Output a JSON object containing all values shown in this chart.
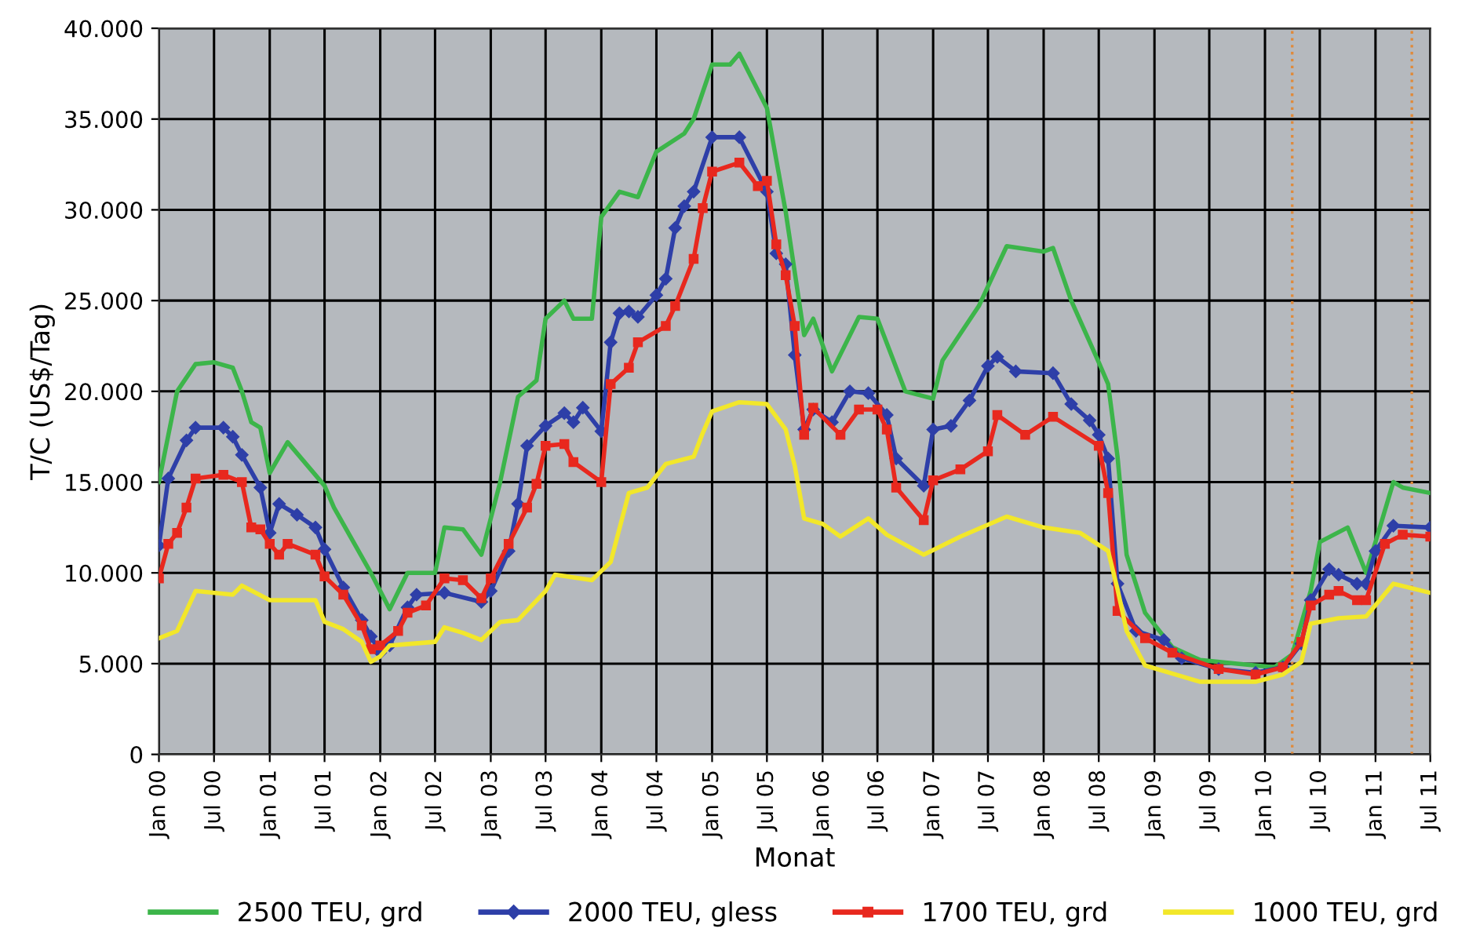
{
  "chart_data": {
    "type": "line",
    "xlabel": "Monat",
    "ylabel": "T/C (US$/Tag)",
    "xlim": [
      "2000-01",
      "2011-07"
    ],
    "xticks": [
      {
        "value": "2000-01",
        "label": "Jan 00"
      },
      {
        "value": "2000-07",
        "label": "Jul 00"
      },
      {
        "value": "2001-01",
        "label": "Jan 01"
      },
      {
        "value": "2001-07",
        "label": "Jul 01"
      },
      {
        "value": "2002-01",
        "label": "Jan 02"
      },
      {
        "value": "2002-07",
        "label": "Jul 02"
      },
      {
        "value": "2003-01",
        "label": "Jan 03"
      },
      {
        "value": "2003-07",
        "label": "Jul 03"
      },
      {
        "value": "2004-01",
        "label": "Jan 04"
      },
      {
        "value": "2004-07",
        "label": "Jul 04"
      },
      {
        "value": "2005-01",
        "label": "Jan 05"
      },
      {
        "value": "2005-07",
        "label": "Jul 05"
      },
      {
        "value": "2006-01",
        "label": "Jan 06"
      },
      {
        "value": "2006-07",
        "label": "Jul 06"
      },
      {
        "value": "2007-01",
        "label": "Jan 07"
      },
      {
        "value": "2007-07",
        "label": "Jul 07"
      },
      {
        "value": "2008-01",
        "label": "Jan 08"
      },
      {
        "value": "2008-07",
        "label": "Jul 08"
      },
      {
        "value": "2009-01",
        "label": "Jan 09"
      },
      {
        "value": "2009-07",
        "label": "Jul 09"
      },
      {
        "value": "2010-01",
        "label": "Jan 10"
      },
      {
        "value": "2010-07",
        "label": "Jul 10"
      },
      {
        "value": "2011-01",
        "label": "Jan 11"
      },
      {
        "value": "2011-07",
        "label": "Jul 11"
      }
    ],
    "ylim": [
      0,
      40000
    ],
    "yticks": [
      0,
      {
        "value": 5000,
        "label": "5.000"
      },
      {
        "value": 10000,
        "label": "10.000"
      },
      {
        "value": 15000,
        "label": "15.000"
      },
      {
        "value": 20000,
        "label": "20.000"
      },
      {
        "value": 25000,
        "label": "25.000"
      },
      {
        "value": 30000,
        "label": "30.000"
      },
      {
        "value": 35000,
        "label": "35.000"
      },
      {
        "value": 40000,
        "label": "40.000"
      }
    ],
    "grid": true,
    "legend": "bottom",
    "line_style": "solid",
    "ref_lines": [
      {
        "axis": "x",
        "value": "2010-04",
        "color": "#e08a3a",
        "line_style": "dotted"
      },
      {
        "axis": "x",
        "value": "2011-05",
        "color": "#e08a3a",
        "line_style": "dotted"
      }
    ],
    "series": [
      {
        "name": "2500 TEU, grd",
        "color": "#3cb54a",
        "marker": "none",
        "x": [
          "2000-01",
          "2000-03",
          "2000-05",
          "2000-07",
          "2000-09",
          "2000-10",
          "2000-11",
          "2000-12",
          "2001-01",
          "2001-03",
          "2001-07",
          "2001-08",
          "2001-12",
          "2002-02",
          "2002-04",
          "2002-07",
          "2002-08",
          "2002-10",
          "2002-12",
          "2003-02",
          "2003-04",
          "2003-06",
          "2003-07",
          "2003-09",
          "2003-10",
          "2003-12",
          "2004-01",
          "2004-03",
          "2004-05",
          "2004-07",
          "2004-10",
          "2004-11",
          "2005-01",
          "2005-03",
          "2005-04",
          "2005-07",
          "2005-09",
          "2005-11",
          "2005-12",
          "2006-02",
          "2006-05",
          "2006-07",
          "2006-10",
          "2007-01",
          "2007-02",
          "2007-06",
          "2007-09",
          "2008-01",
          "2008-02",
          "2008-04",
          "2008-07",
          "2008-08",
          "2008-09",
          "2008-10",
          "2008-12",
          "2009-03",
          "2009-06",
          "2009-10",
          "2010-02",
          "2010-04",
          "2010-06",
          "2010-07",
          "2010-10",
          "2010-12",
          "2011-01",
          "2011-03",
          "2011-04",
          "2011-07"
        ],
        "values": [
          15000,
          20000,
          21500,
          21600,
          21300,
          20000,
          18300,
          18000,
          15500,
          17200,
          14800,
          13600,
          10000,
          8000,
          10000,
          10000,
          12500,
          12400,
          11000,
          15000,
          19700,
          20600,
          24000,
          25000,
          24000,
          24000,
          29600,
          31000,
          30700,
          33200,
          34200,
          35000,
          38000,
          38000,
          38600,
          35600,
          29900,
          23100,
          24000,
          21100,
          24100,
          24000,
          20000,
          19600,
          21700,
          24700,
          28000,
          27700,
          27900,
          25000,
          21600,
          20400,
          16400,
          11000,
          7800,
          5900,
          5200,
          5000,
          4800,
          5500,
          9000,
          11700,
          12500,
          10000,
          11700,
          15000,
          14700,
          14400
        ]
      },
      {
        "name": "2000 TEU, gless",
        "color": "#2e3fa8",
        "marker": "diamond",
        "x": [
          "2000-01",
          "2000-02",
          "2000-04",
          "2000-05",
          "2000-08",
          "2000-09",
          "2000-10",
          "2000-12",
          "2001-01",
          "2001-02",
          "2001-04",
          "2001-06",
          "2001-07",
          "2001-09",
          "2001-11",
          "2001-12",
          "2002-01",
          "2002-02",
          "2002-04",
          "2002-05",
          "2002-08",
          "2002-12",
          "2003-01",
          "2003-03",
          "2003-04",
          "2003-05",
          "2003-07",
          "2003-09",
          "2003-10",
          "2003-11",
          "2004-01",
          "2004-02",
          "2004-03",
          "2004-04",
          "2004-05",
          "2004-07",
          "2004-08",
          "2004-09",
          "2004-10",
          "2004-11",
          "2005-01",
          "2005-04",
          "2005-07",
          "2005-08",
          "2005-09",
          "2005-10",
          "2005-11",
          "2005-12",
          "2006-02",
          "2006-04",
          "2006-06",
          "2006-08",
          "2006-09",
          "2006-12",
          "2007-01",
          "2007-03",
          "2007-05",
          "2007-07",
          "2007-08",
          "2007-10",
          "2008-02",
          "2008-04",
          "2008-06",
          "2008-07",
          "2008-08",
          "2008-09",
          "2008-11",
          "2009-02",
          "2009-04",
          "2009-08",
          "2009-12",
          "2010-03",
          "2010-05",
          "2010-06",
          "2010-08",
          "2010-09",
          "2010-11",
          "2010-12",
          "2011-01",
          "2011-03",
          "2011-07"
        ],
        "values": [
          11500,
          15200,
          17300,
          18000,
          18000,
          17500,
          16500,
          14700,
          12200,
          13800,
          13200,
          12500,
          11300,
          9200,
          7400,
          6500,
          5600,
          6000,
          8100,
          8800,
          8900,
          8400,
          9000,
          11200,
          13800,
          17000,
          18100,
          18800,
          18300,
          19100,
          17800,
          22700,
          24300,
          24400,
          24100,
          25300,
          26200,
          29000,
          30200,
          31000,
          34000,
          34000,
          31000,
          27600,
          27000,
          22000,
          17900,
          19000,
          18300,
          20000,
          19900,
          18700,
          16300,
          14800,
          17900,
          18100,
          19500,
          21400,
          21900,
          21100,
          21000,
          19300,
          18400,
          17600,
          16300,
          9400,
          6800,
          6300,
          5300,
          4700,
          4500,
          4800,
          6100,
          8500,
          10200,
          9900,
          9400,
          9400,
          11200,
          12600,
          12500
        ]
      },
      {
        "name": "1700 TEU, grd",
        "color": "#e8281e",
        "marker": "square",
        "x": [
          "2000-01",
          "2000-02",
          "2000-03",
          "2000-04",
          "2000-05",
          "2000-08",
          "2000-10",
          "2000-11",
          "2000-12",
          "2001-01",
          "2001-02",
          "2001-03",
          "2001-06",
          "2001-07",
          "2001-09",
          "2001-11",
          "2001-12",
          "2002-01",
          "2002-03",
          "2002-04",
          "2002-06",
          "2002-08",
          "2002-10",
          "2002-12",
          "2003-01",
          "2003-03",
          "2003-05",
          "2003-06",
          "2003-07",
          "2003-09",
          "2003-10",
          "2004-01",
          "2004-02",
          "2004-04",
          "2004-05",
          "2004-08",
          "2004-09",
          "2004-11",
          "2004-12",
          "2005-01",
          "2005-04",
          "2005-06",
          "2005-07",
          "2005-08",
          "2005-09",
          "2005-10",
          "2005-11",
          "2005-12",
          "2006-03",
          "2006-05",
          "2006-07",
          "2006-08",
          "2006-09",
          "2006-12",
          "2007-01",
          "2007-04",
          "2007-07",
          "2007-08",
          "2007-11",
          "2008-02",
          "2008-07",
          "2008-08",
          "2008-09",
          "2008-12",
          "2009-03",
          "2009-08",
          "2009-12",
          "2010-03",
          "2010-05",
          "2010-06",
          "2010-08",
          "2010-09",
          "2010-11",
          "2010-12",
          "2011-02",
          "2011-04",
          "2011-07"
        ],
        "values": [
          9700,
          11600,
          12200,
          13600,
          15200,
          15400,
          15000,
          12500,
          12400,
          11600,
          11000,
          11600,
          11000,
          9800,
          8800,
          7100,
          5800,
          6000,
          6800,
          7800,
          8200,
          9700,
          9600,
          8600,
          9700,
          11600,
          13600,
          14900,
          17000,
          17100,
          16100,
          15000,
          20400,
          21300,
          22700,
          23600,
          24700,
          27300,
          30100,
          32100,
          32600,
          31300,
          31600,
          28100,
          26400,
          23600,
          17600,
          19100,
          17600,
          19000,
          19000,
          17900,
          14700,
          12900,
          15100,
          15700,
          16700,
          18700,
          17600,
          18600,
          17000,
          14400,
          7900,
          6400,
          5600,
          4700,
          4400,
          4800,
          6200,
          8200,
          8800,
          9000,
          8500,
          8500,
          11600,
          12100,
          12000
        ]
      },
      {
        "name": "1000 TEU, grd",
        "color": "#f2e72a",
        "marker": "none",
        "x": [
          "2000-01",
          "2000-03",
          "2000-05",
          "2000-09",
          "2000-10",
          "2001-01",
          "2001-06",
          "2001-07",
          "2001-09",
          "2001-11",
          "2001-12",
          "2002-01",
          "2002-02",
          "2002-07",
          "2002-08",
          "2002-10",
          "2002-12",
          "2003-02",
          "2003-04",
          "2003-07",
          "2003-08",
          "2003-12",
          "2004-02",
          "2004-04",
          "2004-06",
          "2004-08",
          "2004-11",
          "2004-12",
          "2005-01",
          "2005-04",
          "2005-07",
          "2005-09",
          "2005-10",
          "2005-11",
          "2006-01",
          "2006-03",
          "2006-06",
          "2006-08",
          "2006-12",
          "2007-04",
          "2007-09",
          "2008-01",
          "2008-05",
          "2008-08",
          "2008-09",
          "2008-10",
          "2008-12",
          "2009-04",
          "2009-06",
          "2009-12",
          "2010-03",
          "2010-05",
          "2010-06",
          "2010-09",
          "2010-12",
          "2011-03",
          "2011-07"
        ],
        "values": [
          6400,
          6800,
          9000,
          8800,
          9300,
          8500,
          8500,
          7300,
          6900,
          6200,
          5100,
          5400,
          6000,
          6200,
          7000,
          6700,
          6300,
          7300,
          7400,
          9000,
          9900,
          9600,
          10600,
          14400,
          14700,
          16000,
          16400,
          17700,
          18900,
          19400,
          19300,
          17900,
          15900,
          13000,
          12700,
          12000,
          13000,
          12100,
          11000,
          12000,
          13100,
          12500,
          12200,
          11200,
          9100,
          6800,
          4900,
          4300,
          4000,
          4000,
          4400,
          5100,
          7200,
          7500,
          7600,
          9400,
          8900
        ]
      }
    ]
  }
}
